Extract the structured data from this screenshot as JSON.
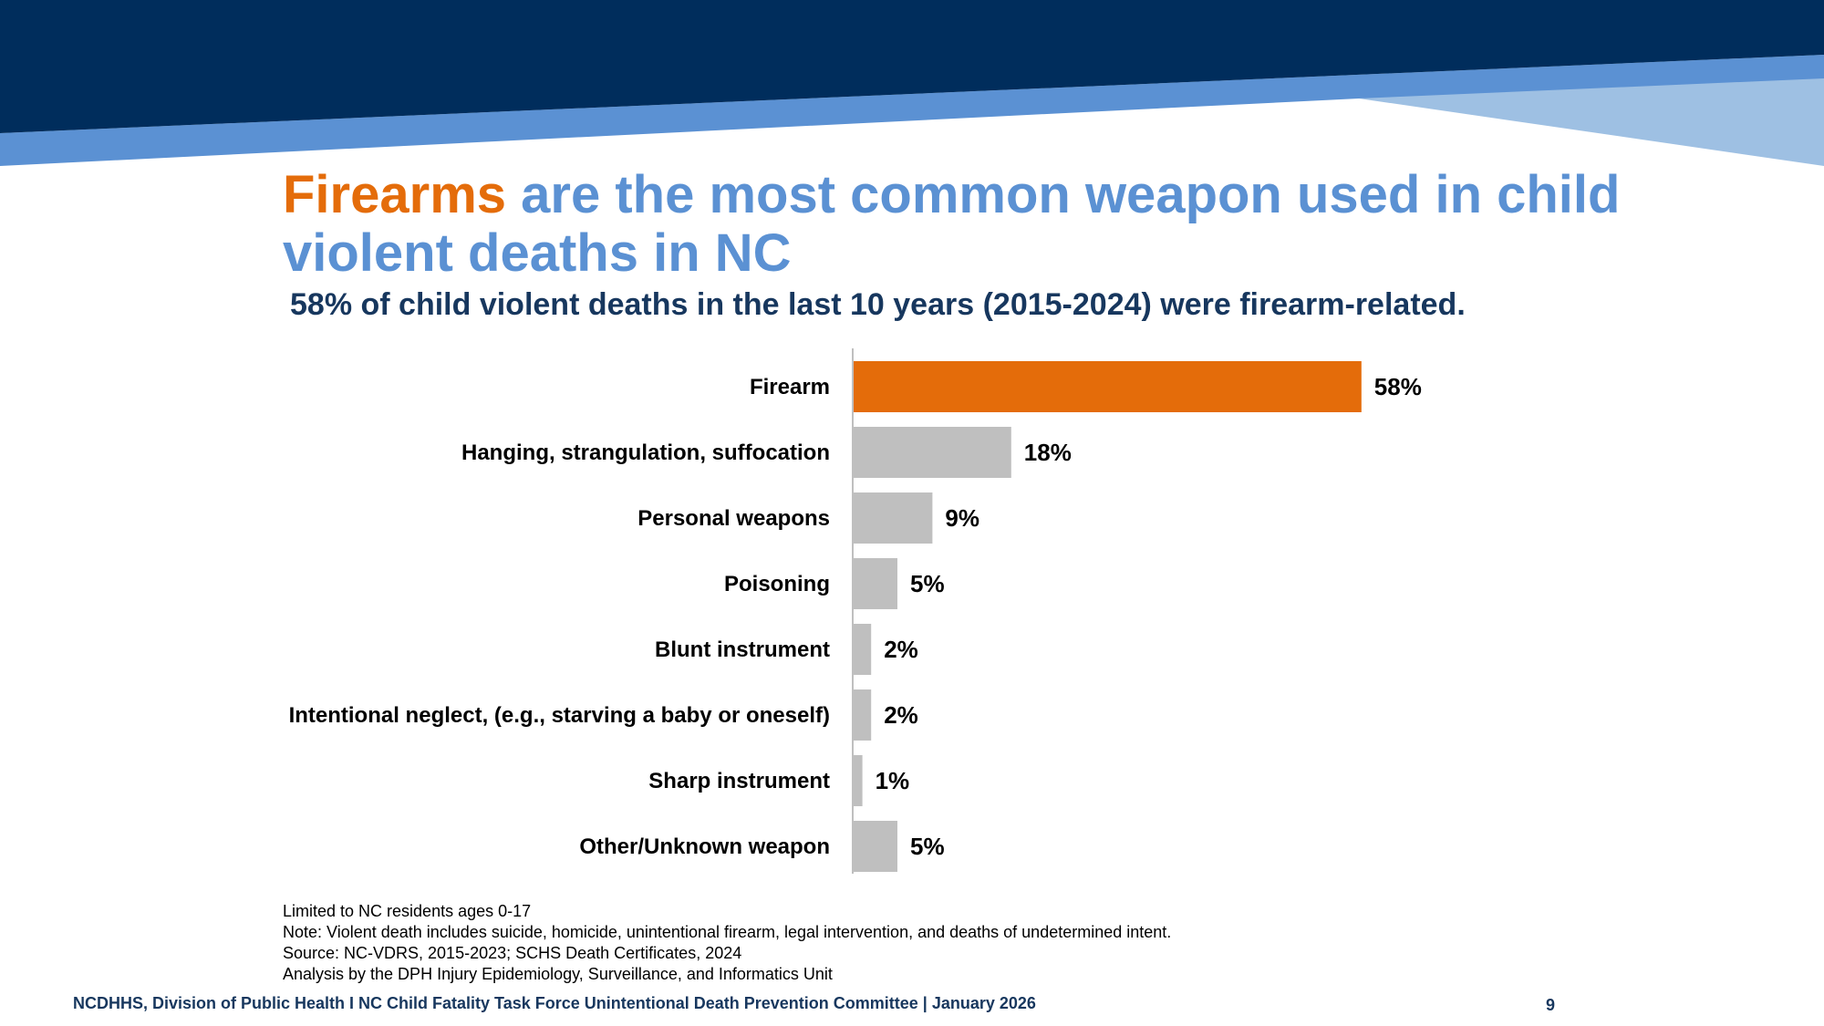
{
  "colors": {
    "navy": "#002d5c",
    "band_blue": "#5b91d3",
    "light_blue": "#9ec0e3",
    "highlight": "#e46c0a",
    "bar_gray": "#bfbfbf",
    "title_blue": "#5b91d3",
    "subtitle_navy": "#17375e"
  },
  "title": {
    "highlight": "Firearms",
    "rest": " are the most common weapon used in child violent deaths in NC"
  },
  "subtitle": "58% of child violent deaths in the last 10 years (2015-2024) were firearm-related.",
  "chart_data": {
    "type": "bar",
    "orientation": "horizontal",
    "categories": [
      "Firearm",
      "Hanging, strangulation, suffocation",
      "Personal weapons",
      "Poisoning",
      "Blunt instrument",
      "Intentional neglect, (e.g., starving a baby or oneself)",
      "Sharp instrument",
      "Other/Unknown weapon"
    ],
    "values": [
      58,
      18,
      9,
      5,
      2,
      2,
      1,
      5
    ],
    "labels": [
      "58%",
      "18%",
      "9%",
      "5%",
      "2%",
      "2%",
      "1%",
      "5%"
    ],
    "highlight_index": 0,
    "xlim": [
      0,
      100
    ],
    "grid": false,
    "legend": "none",
    "title": "",
    "xlabel": "",
    "ylabel": ""
  },
  "notes": [
    "Limited to NC residents ages 0-17",
    "Note: Violent death includes suicide, homicide, unintentional firearm, legal intervention, and deaths of undetermined intent.",
    "Source: NC-VDRS, 2015-2023; SCHS Death Certificates, 2024",
    "Analysis by the DPH Injury Epidemiology, Surveillance, and Informatics Unit"
  ],
  "footer": {
    "text": "NCDHHS, Division of Public Health I NC Child Fatality Task Force Unintentional Death Prevention Committee | January 2026",
    "page_number": "9"
  }
}
